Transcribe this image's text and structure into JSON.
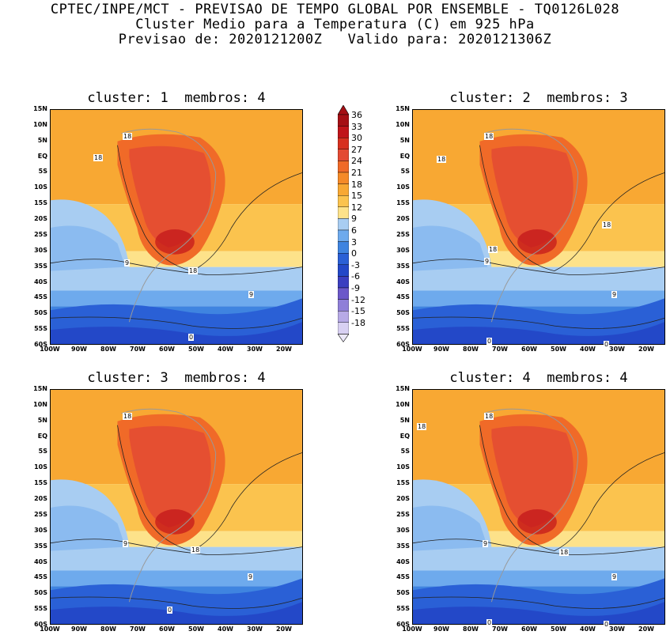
{
  "header": {
    "line1": "CPTEC/INPE/MCT - PREVISAO DE TEMPO GLOBAL POR ENSEMBLE - TQ0126L028",
    "line2": "Cluster Medio para a Temperatura (C) em 925 hPa",
    "line3": "Previsao de: 2020121200Z   Valido para: 2020121306Z"
  },
  "panels": [
    {
      "title": "cluster: 1  membros: 4",
      "labels": [
        "18",
        "18",
        "9",
        "18",
        "9",
        "0"
      ]
    },
    {
      "title": "cluster: 2  membros: 3",
      "labels": [
        "18",
        "18",
        "18",
        "18",
        "9",
        "9",
        "0",
        "0"
      ]
    },
    {
      "title": "cluster: 3  membros: 4",
      "labels": [
        "18",
        "9",
        "18",
        "9",
        "0"
      ]
    },
    {
      "title": "cluster: 4  membros: 4",
      "labels": [
        "18",
        "18",
        "9",
        "18",
        "9",
        "0",
        "0"
      ]
    }
  ],
  "lat_labels": [
    "15N",
    "10N",
    "5N",
    "EQ",
    "5S",
    "10S",
    "15S",
    "20S",
    "25S",
    "30S",
    "35S",
    "40S",
    "45S",
    "50S",
    "55S",
    "60S"
  ],
  "lon_labels": [
    "100W",
    "90W",
    "80W",
    "70W",
    "60W",
    "50W",
    "40W",
    "30W",
    "20W"
  ],
  "colorbar": {
    "labels": [
      "36",
      "33",
      "30",
      "27",
      "24",
      "21",
      "18",
      "15",
      "12",
      "9",
      "6",
      "3",
      "0",
      "-3",
      "-6",
      "-9",
      "-12",
      "-15",
      "-18"
    ],
    "colors": [
      "#a50f15",
      "#c0141a",
      "#d7301f",
      "#e34a33",
      "#f06a28",
      "#f58a28",
      "#f8a833",
      "#fbc34e",
      "#fde28a",
      "#a8cdf2",
      "#6eaaed",
      "#3f84e0",
      "#2a60d6",
      "#2348c8",
      "#3b3fc0",
      "#6b58c9",
      "#8f7fd8",
      "#b7aae6",
      "#d8d0f2"
    ]
  }
}
